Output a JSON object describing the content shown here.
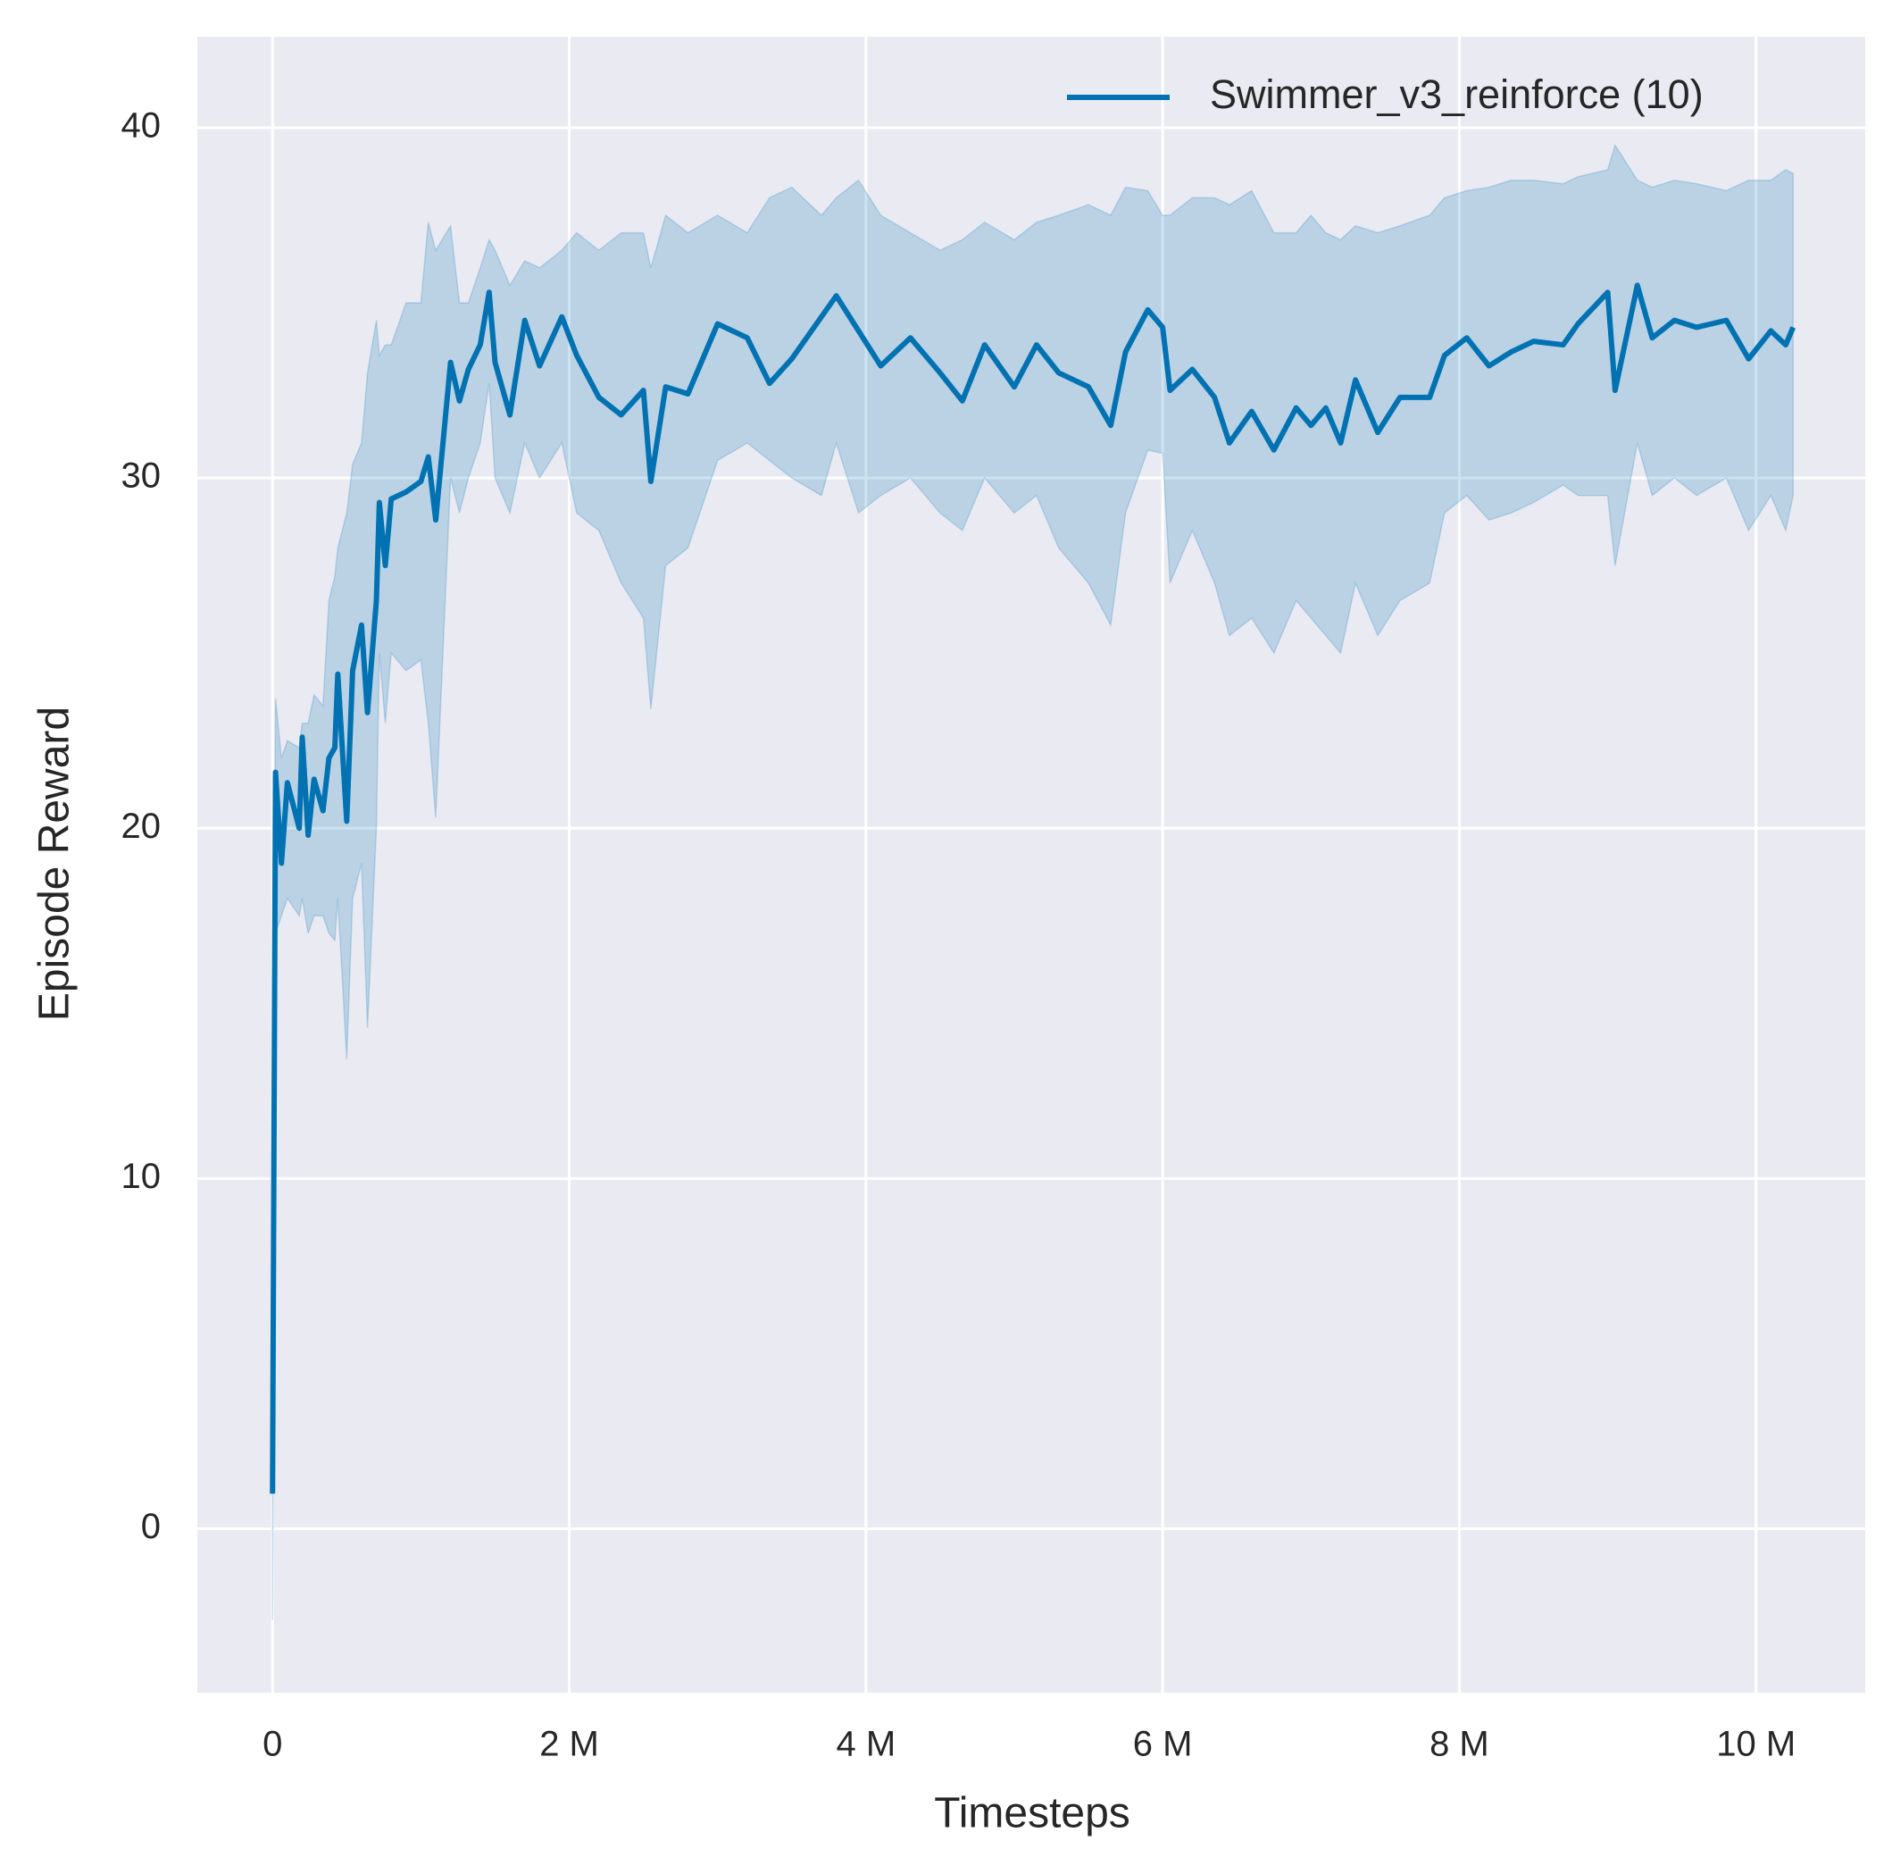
{
  "chart_data": {
    "type": "line",
    "xlabel": "Timesteps",
    "ylabel": "Episode Reward",
    "xlim": [
      -507000,
      10736000
    ],
    "ylim": [
      -4.68,
      42.6
    ],
    "xticks": [
      0,
      {
        "value": 2000000,
        "label": "2 M"
      },
      {
        "value": 4000000,
        "label": "4 M"
      },
      {
        "value": 6000000,
        "label": "6 M"
      },
      {
        "value": 8000000,
        "label": "8 M"
      },
      {
        "value": 10000000,
        "label": "10 M"
      }
    ],
    "yticks": [
      0,
      10,
      20,
      30,
      40
    ],
    "grid": true,
    "legend": "upper right",
    "background": "#eaeaf2",
    "x": [
      0,
      20000,
      60000,
      100000,
      180000,
      200000,
      240000,
      280000,
      340000,
      380000,
      420000,
      440000,
      500000,
      540000,
      600000,
      640000,
      700000,
      720000,
      760000,
      800000,
      900000,
      1000000,
      1050000,
      1100000,
      1200000,
      1260000,
      1320000,
      1400000,
      1460000,
      1500000,
      1600000,
      1700000,
      1800000,
      1950000,
      2050000,
      2200000,
      2350000,
      2500000,
      2550000,
      2650000,
      2800000,
      3000000,
      3200000,
      3350000,
      3500000,
      3700000,
      3800000,
      3950000,
      4100000,
      4300000,
      4500000,
      4650000,
      4800000,
      5000000,
      5150000,
      5300000,
      5500000,
      5650000,
      5750000,
      5900000,
      6000000,
      6050000,
      6200000,
      6350000,
      6450000,
      6600000,
      6750000,
      6900000,
      7000000,
      7100000,
      7200000,
      7300000,
      7450000,
      7600000,
      7800000,
      7900000,
      8050000,
      8200000,
      8350000,
      8500000,
      8700000,
      8800000,
      9000000,
      9050000,
      9200000,
      9300000,
      9450000,
      9600000,
      9800000,
      9950000,
      10100000,
      10200000,
      10250000
    ],
    "series": [
      {
        "name": "Swimmer_v3_reinforce (10)",
        "color": "#0072b2",
        "values": [
          1,
          21.6,
          19,
          21.3,
          20,
          22.6,
          19.8,
          21.4,
          20.5,
          22,
          22.3,
          24.4,
          20.2,
          24.5,
          25.8,
          23.3,
          26.5,
          29.3,
          27.5,
          29.4,
          29.6,
          29.9,
          30.6,
          28.8,
          33.3,
          32.2,
          33.1,
          33.8,
          35.3,
          33.3,
          31.8,
          34.5,
          33.2,
          34.6,
          33.5,
          32.3,
          31.8,
          32.5,
          29.9,
          32.6,
          32.4,
          34.4,
          34,
          32.7,
          33.4,
          34.6,
          35.2,
          34.2,
          33.2,
          34,
          33,
          32.2,
          33.8,
          32.6,
          33.8,
          33,
          32.6,
          31.5,
          33.6,
          34.8,
          34.3,
          32.5,
          33.1,
          32.3,
          31,
          31.9,
          30.8,
          32,
          31.5,
          32,
          31,
          32.8,
          31.3,
          32.3,
          32.3,
          33.5,
          34,
          33.2,
          33.6,
          33.9,
          33.8,
          34.4,
          35.3,
          32.5,
          35.5,
          34,
          34.5,
          34.3,
          34.5,
          33.4,
          34.2,
          33.8,
          34.3
        ],
        "lower": [
          -2.6,
          17,
          17.5,
          18,
          17.5,
          18,
          17,
          17.5,
          17.5,
          17,
          16.8,
          18,
          13.4,
          18,
          19,
          14.3,
          20,
          25,
          23,
          25,
          24.5,
          24.8,
          23,
          20.3,
          30,
          29,
          30,
          31,
          32.7,
          30,
          29,
          31,
          30,
          31,
          29,
          28.5,
          27,
          26,
          23.4,
          27.5,
          28,
          30.5,
          31,
          30.5,
          30,
          29.5,
          31,
          29,
          29.5,
          30,
          29,
          28.5,
          30,
          29,
          29.5,
          28,
          27,
          25.8,
          29,
          30.8,
          30.7,
          27,
          28.5,
          27,
          25.5,
          26,
          25,
          26.5,
          26,
          25.5,
          25,
          27,
          25.5,
          26.5,
          27,
          29,
          29.5,
          28.8,
          29,
          29.3,
          29.8,
          29.5,
          29.5,
          27.5,
          31,
          29.5,
          30,
          29.5,
          30,
          28.5,
          29.5,
          28.5,
          29.5
        ],
        "upper": [
          4,
          23.7,
          22,
          22.5,
          22.3,
          23,
          23,
          23.8,
          23.5,
          26.5,
          27.2,
          28,
          29,
          30.4,
          31,
          33,
          34.5,
          33.5,
          33.8,
          33.8,
          35,
          35,
          37.3,
          36.5,
          37.2,
          35,
          35,
          36,
          36.8,
          36.5,
          35.5,
          36.2,
          36,
          36.5,
          37,
          36.5,
          37,
          37,
          36,
          37.5,
          37,
          37.5,
          37,
          38,
          38.3,
          37.5,
          38,
          38.5,
          37.5,
          37,
          36.5,
          36.8,
          37.3,
          36.8,
          37.3,
          37.5,
          37.8,
          37.5,
          38.3,
          38.2,
          37.5,
          37.5,
          38,
          38,
          37.8,
          38.2,
          37,
          37,
          37.5,
          37,
          36.8,
          37.2,
          37,
          37.2,
          37.5,
          38,
          38.2,
          38.3,
          38.5,
          38.5,
          38.4,
          38.6,
          38.8,
          39.5,
          38.5,
          38.3,
          38.5,
          38.4,
          38.2,
          38.5,
          38.5,
          38.8,
          38.7
        ]
      }
    ]
  }
}
